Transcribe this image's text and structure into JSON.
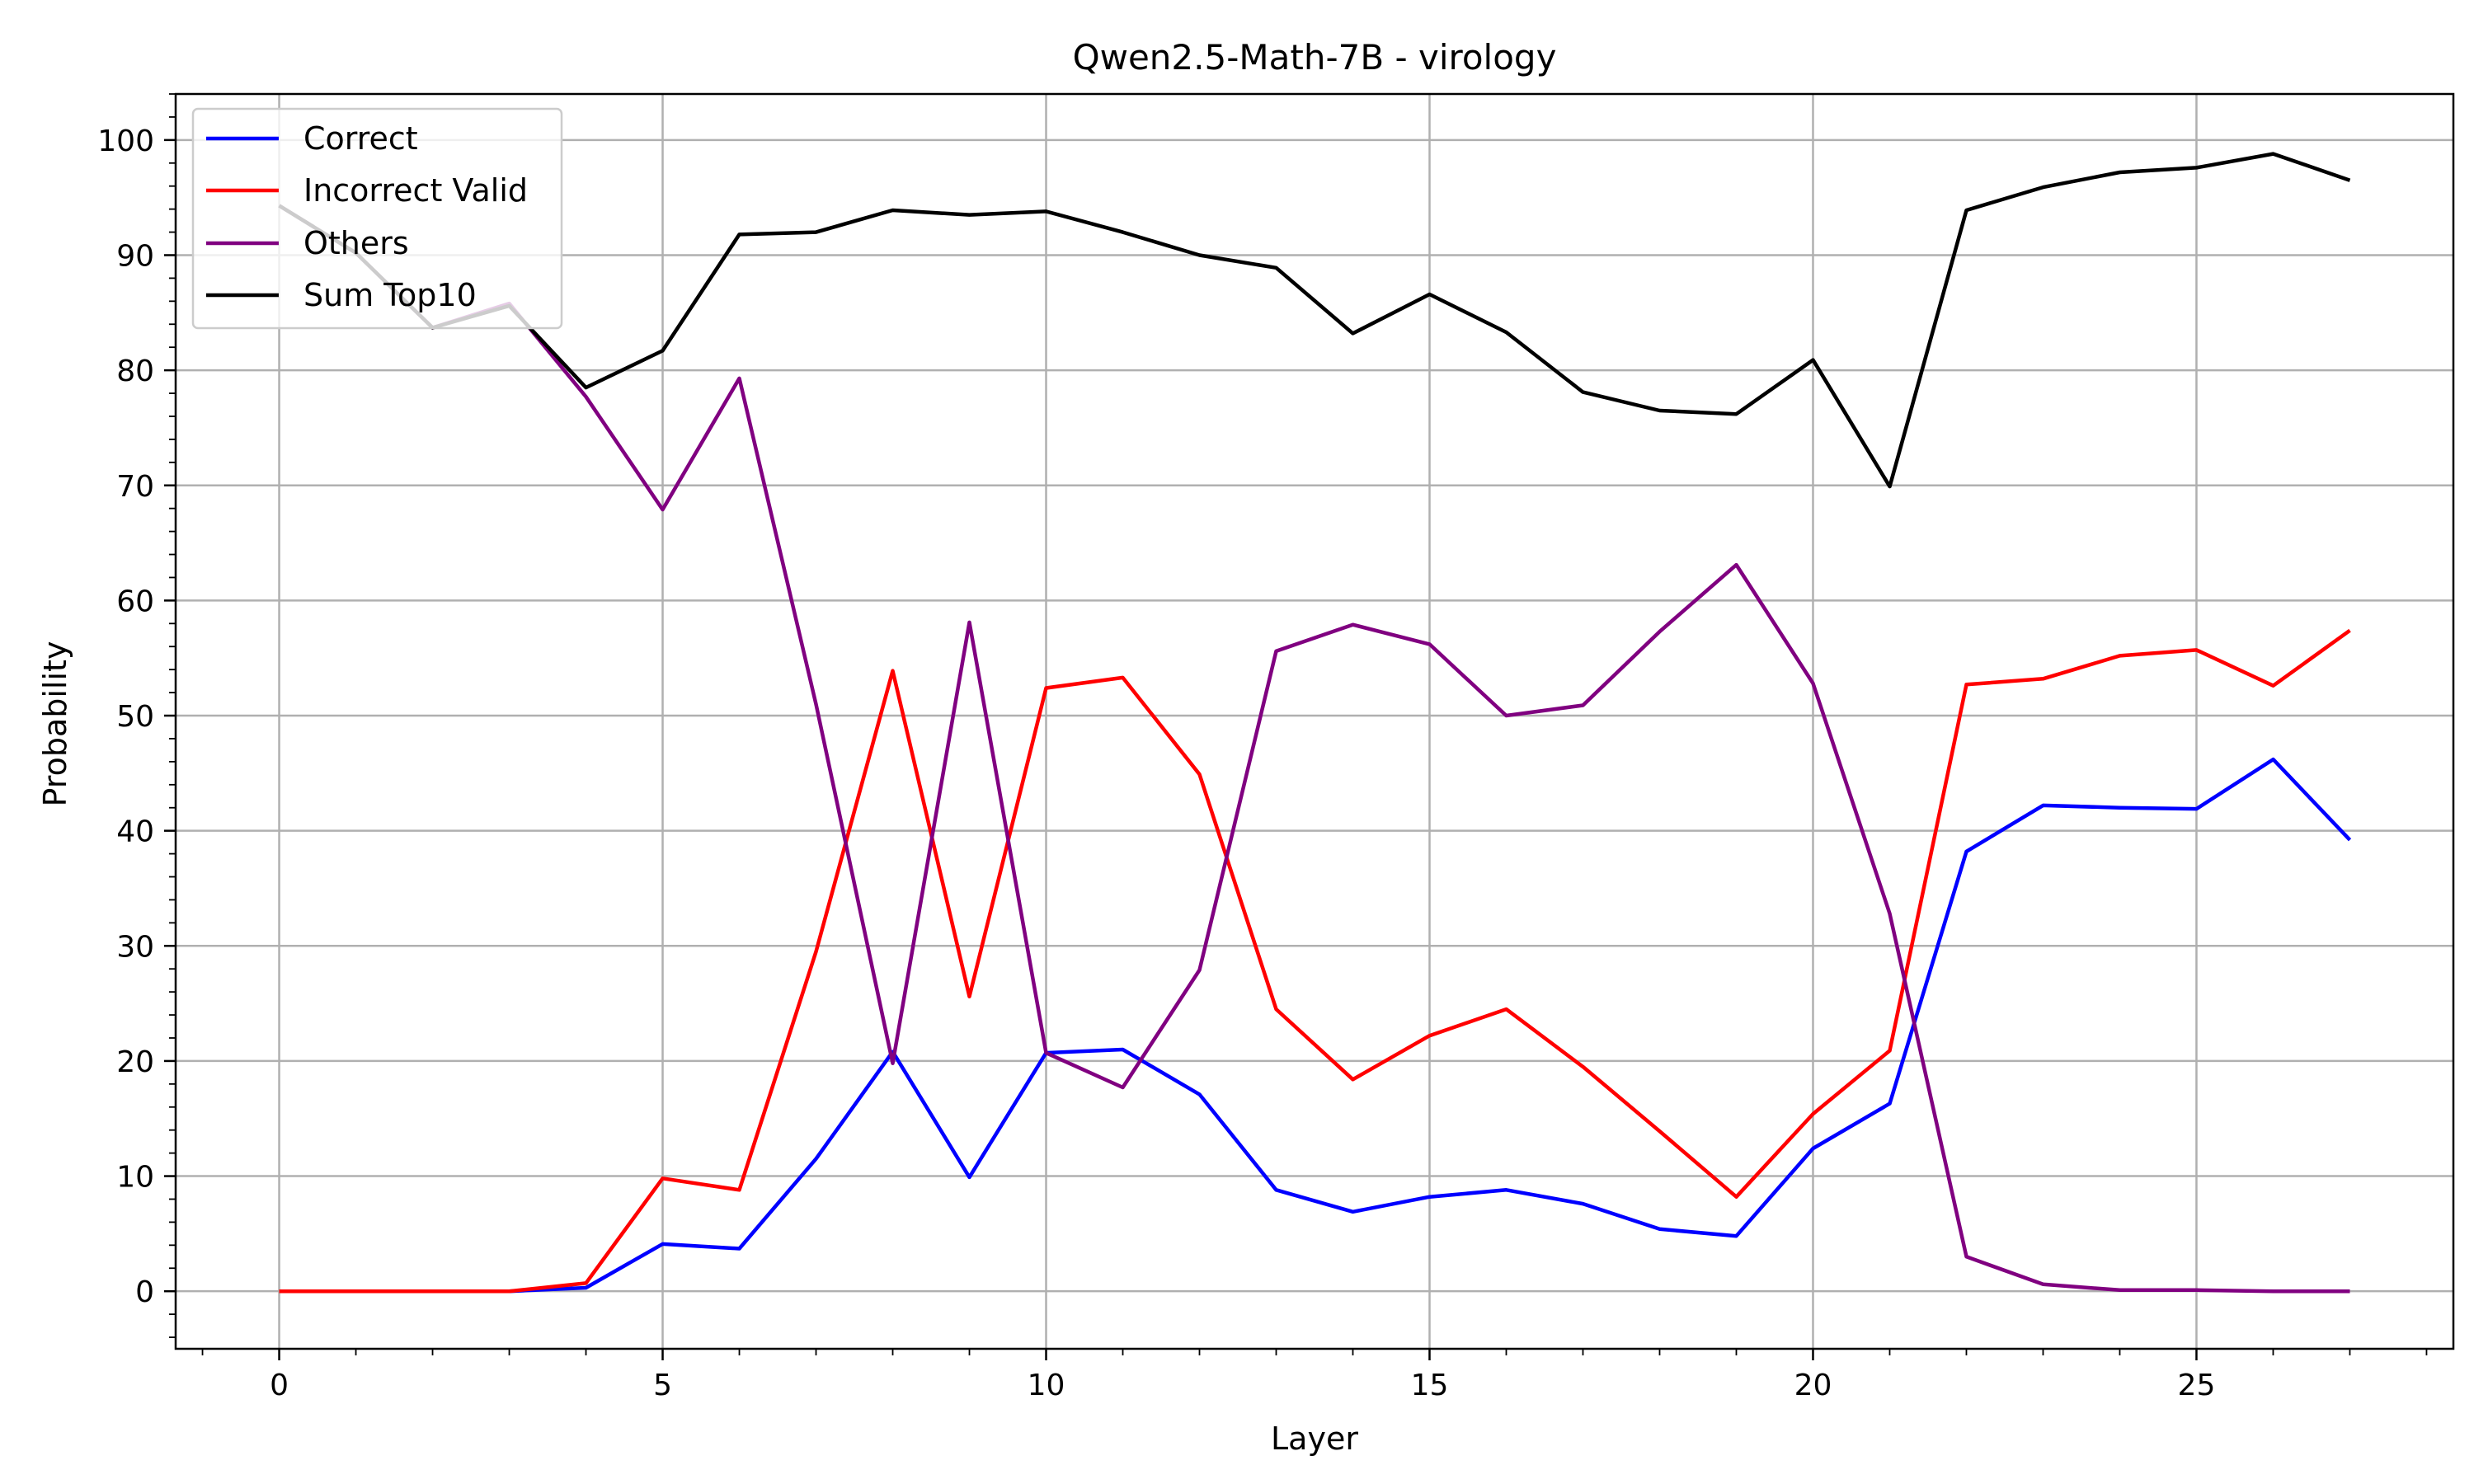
{
  "chart_data": {
    "type": "line",
    "title": "Qwen2.5-Math-7B - virology",
    "xlabel": "Layer",
    "ylabel": "Probability",
    "xlim": [
      -1.35,
      28.35
    ],
    "ylim": [
      -5,
      104
    ],
    "xticks": [
      0,
      5,
      10,
      15,
      20,
      25
    ],
    "yticks": [
      0,
      10,
      20,
      30,
      40,
      50,
      60,
      70,
      80,
      90,
      100
    ],
    "grid": true,
    "legend_position": "upper-left",
    "x": [
      0,
      1,
      2,
      3,
      4,
      5,
      6,
      7,
      8,
      9,
      10,
      11,
      12,
      13,
      14,
      15,
      16,
      17,
      18,
      19,
      20,
      21,
      22,
      23,
      24,
      25,
      26,
      27
    ],
    "series": [
      {
        "name": "Correct",
        "color": "#0000ff",
        "values": [
          0,
          0,
          0,
          0,
          0.3,
          4.1,
          3.7,
          11.5,
          20.8,
          9.9,
          20.7,
          21.0,
          17.1,
          8.8,
          6.9,
          8.2,
          8.8,
          7.6,
          5.4,
          4.8,
          12.4,
          16.3,
          38.2,
          42.2,
          42.0,
          41.9,
          46.2,
          39.2
        ]
      },
      {
        "name": "Incorrect Valid",
        "color": "#ff0000",
        "values": [
          0,
          0,
          0,
          0,
          0.7,
          9.8,
          8.8,
          29.5,
          53.9,
          25.6,
          52.4,
          53.3,
          44.9,
          24.5,
          18.4,
          22.2,
          24.5,
          19.5,
          13.9,
          8.2,
          15.4,
          20.9,
          52.7,
          53.2,
          55.2,
          55.7,
          52.6,
          57.4
        ]
      },
      {
        "name": "Others",
        "color": "#800080",
        "values": [
          94.3,
          90.2,
          83.7,
          85.8,
          77.7,
          67.9,
          79.3,
          51.0,
          19.8,
          58.1,
          20.7,
          17.7,
          27.9,
          55.6,
          57.9,
          56.2,
          50.0,
          50.9,
          57.3,
          63.1,
          52.8,
          32.8,
          3.0,
          0.6,
          0.1,
          0.1,
          0.0,
          0.0
        ]
      },
      {
        "name": "Sum Top10",
        "color": "#000000",
        "values": [
          94.3,
          90.2,
          83.7,
          85.6,
          78.5,
          81.7,
          91.8,
          92.0,
          93.9,
          93.5,
          93.8,
          92.0,
          90.0,
          88.9,
          83.2,
          86.6,
          83.3,
          78.1,
          76.5,
          76.2,
          80.9,
          69.9,
          93.9,
          95.9,
          97.2,
          97.6,
          98.8,
          96.5
        ]
      }
    ]
  }
}
